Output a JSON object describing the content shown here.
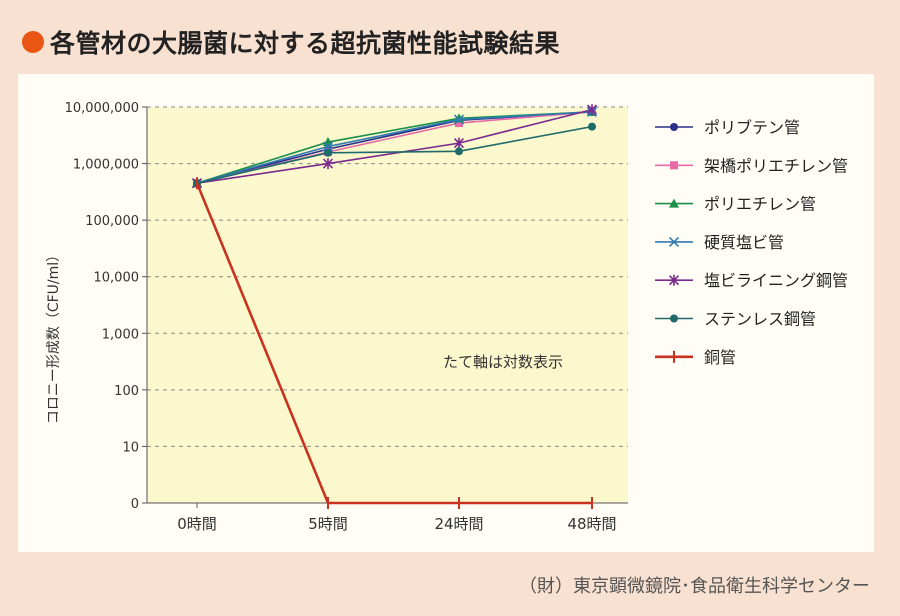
{
  "title": "各管材の大腸菌に対する超抗菌性能試験結果",
  "credit": "（財）東京顕微鏡院･食品衛生科学センター",
  "colors": {
    "title_dot": "#e95512",
    "panel_bg": "#fffdf5",
    "plot_bg": "#fcf8cd",
    "page_bg": "#f9e1d2"
  },
  "chart_data": {
    "type": "line",
    "yscale": "log",
    "ylabel": "コロニー形成数（CFU/ml）",
    "annotation": "たて軸は対数表示",
    "categories": [
      "0時間",
      "5時間",
      "24時間",
      "48時間"
    ],
    "yticks": [
      {
        "value": 1,
        "label": "0"
      },
      {
        "value": 10,
        "label": "10"
      },
      {
        "value": 100,
        "label": "100"
      },
      {
        "value": 1000,
        "label": "1,000"
      },
      {
        "value": 10000,
        "label": "10,000"
      },
      {
        "value": 100000,
        "label": "100,000"
      },
      {
        "value": 1000000,
        "label": "1,000,000"
      },
      {
        "value": 10000000,
        "label": "10,000,000"
      }
    ],
    "ylim": [
      1,
      10000000
    ],
    "grid": true,
    "legend": "right",
    "series": [
      {
        "name": "ポリブテン管",
        "color": "#2a2f8a",
        "marker": "circle",
        "values": [
          450000,
          1800000,
          5800000,
          8200000
        ]
      },
      {
        "name": "架橋ポリエチレン管",
        "color": "#e56aa6",
        "marker": "square",
        "values": [
          450000,
          1600000,
          5200000,
          8200000
        ]
      },
      {
        "name": "ポリエチレン管",
        "color": "#1a8f4a",
        "marker": "triangle",
        "values": [
          450000,
          2400000,
          6300000,
          8200000
        ]
      },
      {
        "name": "硬質塩ビ管",
        "color": "#2f7ab5",
        "marker": "x",
        "values": [
          450000,
          2000000,
          6000000,
          8200000
        ]
      },
      {
        "name": "塩ビライニング鋼管",
        "color": "#7a2a8f",
        "marker": "asterisk",
        "values": [
          450000,
          1000000,
          2300000,
          9000000
        ]
      },
      {
        "name": "ステンレス鋼管",
        "color": "#1f6a6a",
        "marker": "circle",
        "values": [
          450000,
          1550000,
          1650000,
          4500000
        ]
      },
      {
        "name": "銅管",
        "color": "#c8321e",
        "marker": "plus",
        "values": [
          450000,
          1,
          1,
          1
        ]
      }
    ]
  }
}
